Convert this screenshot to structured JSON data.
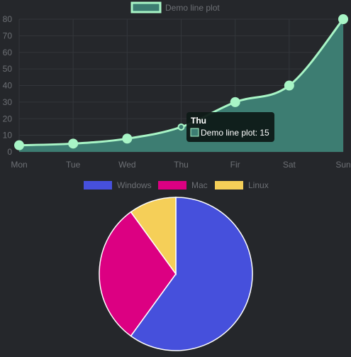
{
  "chart_data": [
    {
      "type": "line",
      "categories": [
        "Mon",
        "Tue",
        "Wed",
        "Thu",
        "Fir",
        "Sat",
        "Sun"
      ],
      "series": [
        {
          "name": "Demo line plot",
          "values": [
            4,
            5,
            8,
            15,
            30,
            40,
            80
          ]
        }
      ],
      "ylim": [
        0,
        80
      ],
      "yticks": [
        "0",
        "10",
        "20",
        "30",
        "40",
        "50",
        "60",
        "70",
        "80"
      ],
      "grid": true,
      "legend_position": "top",
      "fill": true,
      "colors": {
        "line": "#a8f5c6",
        "fill": "#3d7d72",
        "grid": "#33363b",
        "axis_text": "#6d7075"
      },
      "tooltip": {
        "title": "Thu",
        "label": "Demo line plot: 15"
      }
    },
    {
      "type": "pie",
      "categories": [
        "Windows",
        "Mac",
        "Linux"
      ],
      "values": [
        60,
        30,
        10
      ],
      "legend_position": "top",
      "colors": [
        "#4650dc",
        "#dc0082",
        "#f5cf58"
      ]
    }
  ]
}
